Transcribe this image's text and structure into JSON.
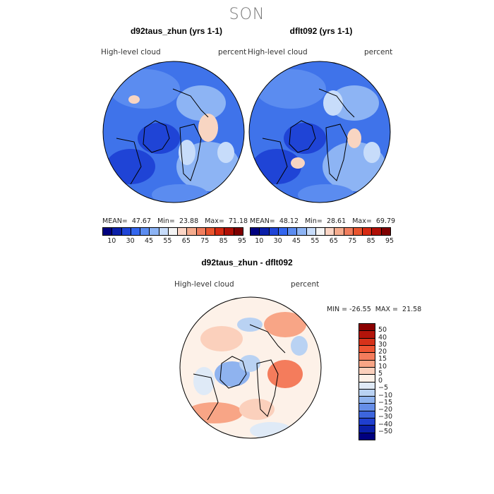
{
  "figure": {
    "season": "SON"
  },
  "panels": [
    {
      "title": "d92taus_zhun (yrs 1-1)",
      "variable": "High-level cloud",
      "units": "percent",
      "stats": {
        "mean_label": "MEAN=",
        "mean": "47.67",
        "min_label": "Min=",
        "min": "23.88",
        "max_label": "Max=",
        "max": "71.18"
      }
    },
    {
      "title": "dflt092 (yrs 1-1)",
      "variable": "High-level cloud",
      "units": "percent",
      "stats": {
        "mean_label": "MEAN=",
        "mean": "48.12",
        "min_label": "Min=",
        "min": "28.61",
        "max_label": "Max=",
        "max": "69.79"
      }
    }
  ],
  "diff": {
    "title": "d92taus_zhun - dflt092",
    "variable": "High-level cloud",
    "units": "percent",
    "stats": {
      "min_label": "MIN =",
      "min": "-26.55",
      "max_label": "MAX =",
      "max": "21.58"
    }
  },
  "colorbar_top": {
    "colors": [
      "#00007f",
      "#0a1fa8",
      "#1f44d6",
      "#3366ee",
      "#5b8cf0",
      "#8db4f4",
      "#c7dcfa",
      "#f4f4f4",
      "#fbd5c5",
      "#f5ac8e",
      "#f07e5e",
      "#e9552f",
      "#d62a12",
      "#b00f05",
      "#7f0000"
    ],
    "labels": [
      "10",
      "30",
      "45",
      "55",
      "65",
      "75",
      "85",
      "95"
    ]
  },
  "colorbar_diff": {
    "colors": [
      "#8b0000",
      "#b3140a",
      "#d6321a",
      "#ee5533",
      "#f47c5c",
      "#f8a586",
      "#fbd0bc",
      "#fdf1e8",
      "#dfeaf7",
      "#b9d2f3",
      "#8fb3ef",
      "#668ee8",
      "#3d65dd",
      "#1f3fcf",
      "#0a1fa8",
      "#00007f"
    ],
    "labels": [
      "50",
      "40",
      "30",
      "20",
      "15",
      "10",
      "5",
      "0",
      "−5",
      "−10",
      "−15",
      "−20",
      "−30",
      "−40",
      "−50"
    ]
  }
}
